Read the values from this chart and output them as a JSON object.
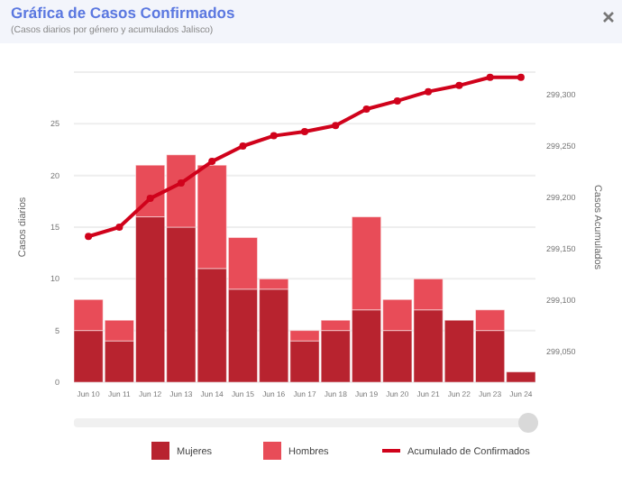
{
  "chart_data": {
    "type": "bar",
    "title": "Gráfica de Casos Confirmados",
    "subtitle": "(Casos diarios por género y acumulados Jalisco)",
    "ylabel": "Casos diarios",
    "y2label": "Casos Acumulados",
    "categories": [
      "Jun 10",
      "Jun 11",
      "Jun 12",
      "Jun 13",
      "Jun 14",
      "Jun 15",
      "Jun 16",
      "Jun 17",
      "Jun 18",
      "Jun 19",
      "Jun 20",
      "Jun 21",
      "Jun 22",
      "Jun 23",
      "Jun 24"
    ],
    "stacked": true,
    "series": [
      {
        "name": "Mujeres",
        "color": "#b8232f",
        "values": [
          5,
          4,
          16,
          15,
          11,
          9,
          9,
          4,
          5,
          7,
          5,
          7,
          6,
          5,
          1
        ]
      },
      {
        "name": "Hombres",
        "color": "#e84c58",
        "values": [
          3,
          2,
          5,
          7,
          10,
          5,
          1,
          1,
          1,
          9,
          3,
          3,
          0,
          2,
          0
        ]
      },
      {
        "name": "Acumulado de Confirmados",
        "type": "line",
        "axis": "y2",
        "color": "#d0021b",
        "marker": "circle",
        "values": [
          299162,
          299171,
          299199,
          299214,
          299235,
          299250,
          299260,
          299264,
          299270,
          299286,
          299294,
          299303,
          299309,
          299317,
          299317
        ]
      }
    ],
    "ylim": [
      0,
      30
    ],
    "yticks": [
      0,
      5,
      10,
      15,
      20,
      25
    ],
    "y2lim": [
      299020,
      299322
    ],
    "y2ticks": [
      {
        "value": 299050,
        "label": "299,050"
      },
      {
        "value": 299100,
        "label": "299,100"
      },
      {
        "value": 299150,
        "label": "299,150"
      },
      {
        "value": 299200,
        "label": "299,200"
      },
      {
        "value": 299250,
        "label": "299,250"
      },
      {
        "value": 299300,
        "label": "299,300"
      }
    ],
    "grid": "y",
    "legend": "bottom"
  }
}
